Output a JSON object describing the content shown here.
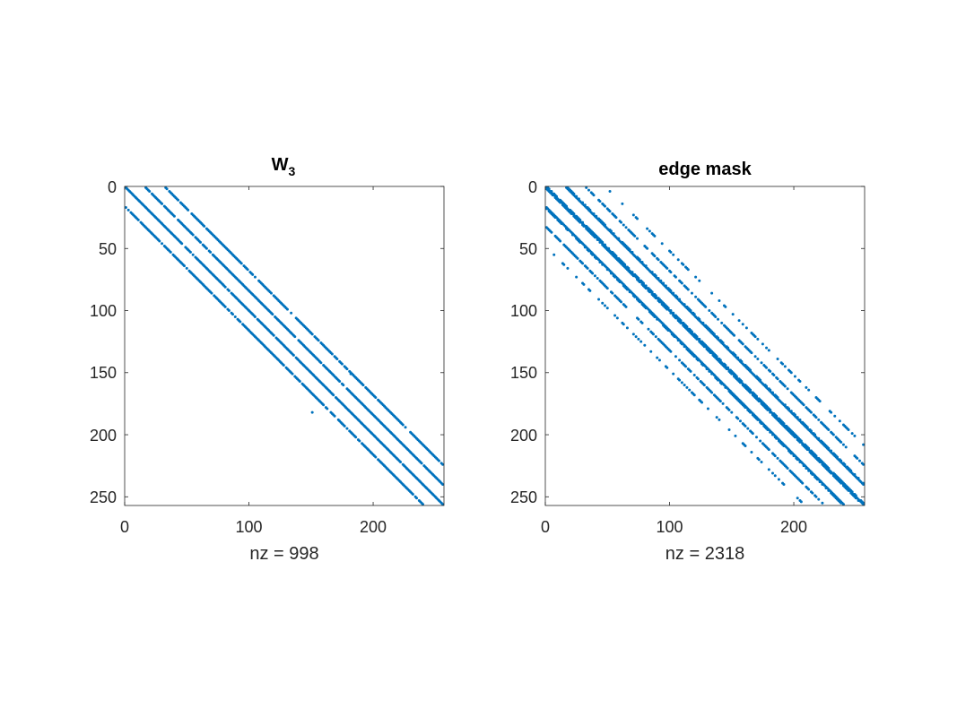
{
  "colors": {
    "marker": "#0072BD",
    "axis": "#262626",
    "background": "#ffffff"
  },
  "chart_data": [
    {
      "type": "scatter",
      "subtype": "spy",
      "title": "W",
      "title_subscript": "3",
      "xlabel": "nz = 998",
      "nz": 998,
      "xlim": [
        0,
        257
      ],
      "ylim": [
        257,
        0
      ],
      "y_reversed": true,
      "xticks": [
        "0",
        "100",
        "200"
      ],
      "yticks": [
        "0",
        "50",
        "100",
        "150",
        "200",
        "250"
      ],
      "grid": false,
      "diagonals": [
        {
          "offset": 0,
          "density": 0.95
        },
        {
          "offset": 16,
          "density": 0.95
        },
        {
          "offset": -16,
          "density": 0.9
        },
        {
          "offset": 32,
          "density": 0.85
        }
      ],
      "outliers": [
        [
          181,
          150
        ],
        [
          150,
          181
        ]
      ]
    },
    {
      "type": "scatter",
      "subtype": "spy",
      "title": "edge mask",
      "xlabel": "nz = 2318",
      "nz": 2318,
      "xlim": [
        0,
        257
      ],
      "ylim": [
        257,
        0
      ],
      "y_reversed": true,
      "xticks": [
        "0",
        "100",
        "200"
      ],
      "yticks": [
        "0",
        "50",
        "100",
        "150",
        "200",
        "250"
      ],
      "grid": false,
      "diagonals": [
        {
          "offset": 0,
          "density": 1.0
        },
        {
          "offset": 1,
          "density": 0.8
        },
        {
          "offset": -1,
          "density": 0.8
        },
        {
          "offset": 16,
          "density": 1.0
        },
        {
          "offset": 17,
          "density": 0.6
        },
        {
          "offset": -16,
          "density": 1.0
        },
        {
          "offset": -17,
          "density": 0.6
        },
        {
          "offset": 32,
          "density": 0.7
        },
        {
          "offset": -32,
          "density": 0.7
        },
        {
          "offset": 48,
          "density": 0.3
        },
        {
          "offset": -48,
          "density": 0.3
        }
      ],
      "outliers": []
    }
  ]
}
